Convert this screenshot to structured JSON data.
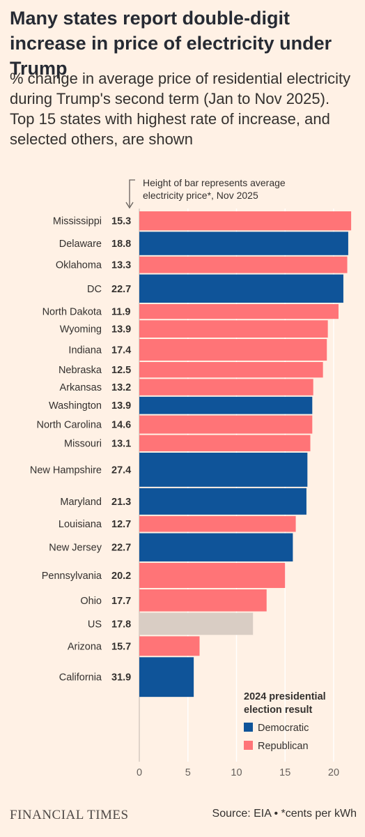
{
  "title": "Many states report double-digit increase in price of electricity under Trump",
  "subtitle": "% change in average price of residential electricity during Trump's second term (Jan to Nov 2025). Top 15 states with highest rate of increase, and selected others, are shown",
  "annotation": [
    "Height of bar represents average",
    "electricity price*, Nov 2025"
  ],
  "legend": {
    "title_lines": [
      "2024 presidential",
      "election result"
    ],
    "items": [
      {
        "label": "Democratic",
        "color": "#0f5499"
      },
      {
        "label": "Republican",
        "color": "#ff7477"
      }
    ]
  },
  "footer": {
    "logo": "FINANCIAL TIMES",
    "source": "Source: EIA • *cents per kWh"
  },
  "colors": {
    "Democratic": "#0f5499",
    "Republican": "#ff7477",
    "US": "#d9cdc4",
    "background": "#fff1e5",
    "grid": "#ffffff"
  },
  "chart_data": {
    "type": "bar",
    "orientation": "horizontal",
    "x_axis": {
      "range": [
        0,
        22
      ],
      "ticks": [
        0,
        5,
        10,
        15,
        20
      ]
    },
    "grid": true,
    "legend_position": "bottom-right",
    "value_meaning": "% change in average price of residential electricity, Jan to Nov 2025",
    "bar_height_meaning": "average electricity price (cents per kWh), Nov 2025",
    "rows": [
      {
        "state": "Mississippi",
        "price": "15.3",
        "price_value": 15.3,
        "change": 21.8,
        "party": "Republican"
      },
      {
        "state": "Delaware",
        "price": "18.8",
        "price_value": 18.8,
        "change": 21.5,
        "party": "Democratic"
      },
      {
        "state": "Oklahoma",
        "price": "13.3",
        "price_value": 13.3,
        "change": 21.4,
        "party": "Republican"
      },
      {
        "state": "DC",
        "price": "22.7",
        "price_value": 22.7,
        "change": 21.0,
        "party": "Democratic"
      },
      {
        "state": "North Dakota",
        "price": "11.9",
        "price_value": 11.9,
        "change": 20.5,
        "party": "Republican"
      },
      {
        "state": "Wyoming",
        "price": "13.9",
        "price_value": 13.9,
        "change": 19.4,
        "party": "Republican"
      },
      {
        "state": "Indiana",
        "price": "17.4",
        "price_value": 17.4,
        "change": 19.3,
        "party": "Republican"
      },
      {
        "state": "Nebraska",
        "price": "12.5",
        "price_value": 12.5,
        "change": 18.9,
        "party": "Republican"
      },
      {
        "state": "Arkansas",
        "price": "13.2",
        "price_value": 13.2,
        "change": 17.9,
        "party": "Republican"
      },
      {
        "state": "Washington",
        "price": "13.9",
        "price_value": 13.9,
        "change": 17.8,
        "party": "Democratic"
      },
      {
        "state": "North Carolina",
        "price": "14.6",
        "price_value": 14.6,
        "change": 17.8,
        "party": "Republican"
      },
      {
        "state": "Missouri",
        "price": "13.1",
        "price_value": 13.1,
        "change": 17.6,
        "party": "Republican"
      },
      {
        "state": "New Hampshire",
        "price": "27.4",
        "price_value": 27.4,
        "change": 17.3,
        "party": "Democratic"
      },
      {
        "state": "Maryland",
        "price": "21.3",
        "price_value": 21.3,
        "change": 17.2,
        "party": "Democratic"
      },
      {
        "state": "Louisiana",
        "price": "12.7",
        "price_value": 12.7,
        "change": 16.1,
        "party": "Republican"
      },
      {
        "state": "New Jersey",
        "price": "22.7",
        "price_value": 22.7,
        "change": 15.8,
        "party": "Democratic"
      },
      {
        "state": "Pennsylvania",
        "price": "20.2",
        "price_value": 20.2,
        "change": 15.0,
        "party": "Republican"
      },
      {
        "state": "Ohio",
        "price": "17.7",
        "price_value": 17.7,
        "change": 13.1,
        "party": "Republican"
      },
      {
        "state": "US",
        "price": "17.8",
        "price_value": 17.8,
        "change": 11.7,
        "party": "US"
      },
      {
        "state": "Arizona",
        "price": "15.7",
        "price_value": 15.7,
        "change": 6.2,
        "party": "Republican"
      },
      {
        "state": "California",
        "price": "31.9",
        "price_value": 31.9,
        "change": 5.6,
        "party": "Democratic"
      }
    ]
  }
}
